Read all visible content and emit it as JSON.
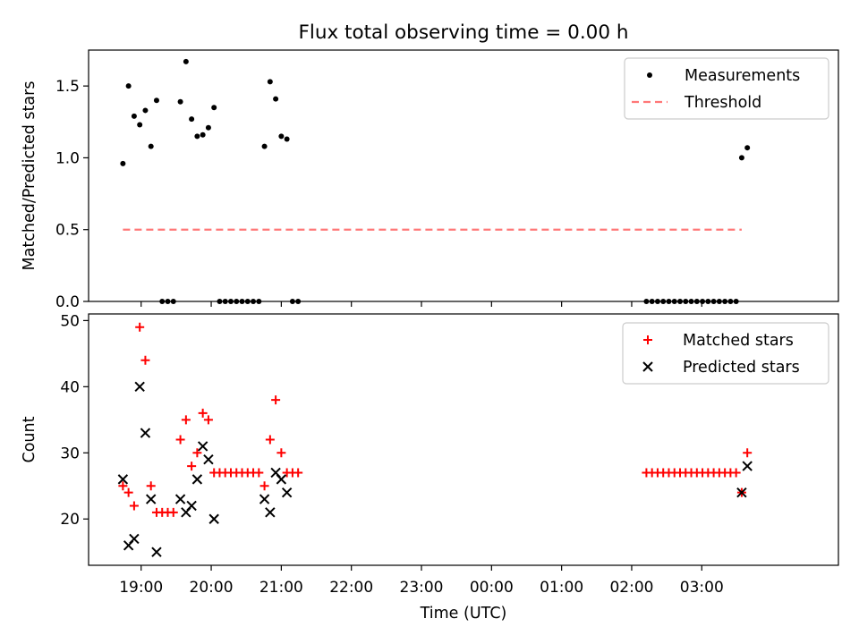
{
  "figure": {
    "title": "Flux total observing time = 0.00 h",
    "xlabel": "Time (UTC)"
  },
  "x_tick_labels": [
    "19:00",
    "20:00",
    "21:00",
    "22:00",
    "23:00",
    "00:00",
    "01:00",
    "02:00",
    "03:00"
  ],
  "chart_data": [
    {
      "type": "scatter",
      "title": "Flux total observing time = 0.00 h",
      "xlabel": "",
      "ylabel": "Matched/Predicted stars",
      "x_unit": "hours since 18:00 UTC",
      "xlim": [
        0.25,
        10.95
      ],
      "ylim": [
        0,
        1.75
      ],
      "yticks": [
        0.0,
        0.5,
        1.0,
        1.5
      ],
      "ytick_labels": [
        "0.0",
        "0.5",
        "1.0",
        "1.5"
      ],
      "legend": {
        "position": "top-right",
        "entries": [
          "Measurements",
          "Threshold"
        ]
      },
      "series": [
        {
          "name": "Measurements",
          "marker": "dot",
          "color": "#000000",
          "x": [
            0.74,
            0.82,
            0.9,
            0.98,
            1.06,
            1.14,
            1.22,
            1.3,
            1.38,
            1.46,
            1.56,
            1.64,
            1.72,
            1.8,
            1.88,
            1.96,
            2.04,
            2.12,
            2.2,
            2.28,
            2.36,
            2.44,
            2.52,
            2.6,
            2.68,
            2.76,
            2.84,
            2.92,
            3.0,
            3.08,
            3.16,
            3.24,
            8.21,
            8.29,
            8.37,
            8.45,
            8.53,
            8.61,
            8.69,
            8.77,
            8.85,
            8.93,
            9.01,
            9.09,
            9.17,
            9.25,
            9.33,
            9.41,
            9.49,
            9.57,
            9.65
          ],
          "y": [
            0.96,
            1.5,
            1.29,
            1.23,
            1.33,
            1.08,
            1.4,
            0.0,
            0.0,
            0.0,
            1.39,
            1.67,
            1.27,
            1.15,
            1.16,
            1.21,
            1.35,
            0.0,
            0.0,
            0.0,
            0.0,
            0.0,
            0.0,
            0.0,
            0.0,
            1.08,
            1.53,
            1.41,
            1.15,
            1.13,
            0.0,
            0.0,
            0.0,
            0.0,
            0.0,
            0.0,
            0.0,
            0.0,
            0.0,
            0.0,
            0.0,
            0.0,
            0.0,
            0.0,
            0.0,
            0.0,
            0.0,
            0.0,
            0.0,
            1.0,
            1.07
          ]
        },
        {
          "name": "Threshold",
          "marker": "dashed-line",
          "color": "#ff7777",
          "x": [
            0.74,
            9.57
          ],
          "y": [
            0.5,
            0.5
          ]
        }
      ]
    },
    {
      "type": "scatter",
      "title": "",
      "xlabel": "Time (UTC)",
      "ylabel": "Count",
      "x_unit": "hours since 18:00 UTC",
      "xlim": [
        0.25,
        10.95
      ],
      "ylim": [
        13.0,
        51.0
      ],
      "yticks": [
        20,
        30,
        40,
        50
      ],
      "ytick_labels": [
        "20",
        "30",
        "40",
        "50"
      ],
      "legend": {
        "position": "top-right",
        "entries": [
          "Matched stars",
          "Predicted stars"
        ]
      },
      "series": [
        {
          "name": "Matched stars",
          "marker": "plus",
          "color": "#ff0000",
          "x": [
            0.74,
            0.82,
            0.9,
            0.98,
            1.06,
            1.14,
            1.22,
            1.3,
            1.38,
            1.46,
            1.56,
            1.64,
            1.72,
            1.8,
            1.88,
            1.96,
            2.04,
            2.12,
            2.2,
            2.28,
            2.36,
            2.44,
            2.52,
            2.6,
            2.68,
            2.76,
            2.84,
            2.92,
            3.0,
            3.08,
            3.16,
            3.24,
            8.21,
            8.29,
            8.37,
            8.45,
            8.53,
            8.61,
            8.69,
            8.77,
            8.85,
            8.93,
            9.01,
            9.09,
            9.17,
            9.25,
            9.33,
            9.41,
            9.49,
            9.57,
            9.65
          ],
          "y": [
            25,
            24,
            22,
            49,
            44,
            25,
            21,
            21,
            21,
            21,
            32,
            35,
            28,
            30,
            36,
            35,
            27,
            27,
            27,
            27,
            27,
            27,
            27,
            27,
            27,
            25,
            32,
            38,
            30,
            27,
            27,
            27,
            27,
            27,
            27,
            27,
            27,
            27,
            27,
            27,
            27,
            27,
            27,
            27,
            27,
            27,
            27,
            27,
            27,
            24,
            30
          ]
        },
        {
          "name": "Predicted stars",
          "marker": "x",
          "color": "#000000",
          "x": [
            0.74,
            0.82,
            0.9,
            0.98,
            1.06,
            1.14,
            1.22,
            1.56,
            1.64,
            1.72,
            1.8,
            1.88,
            1.96,
            2.04,
            2.76,
            2.84,
            2.92,
            3.0,
            3.08,
            9.57,
            9.65
          ],
          "y": [
            26,
            16,
            17,
            40,
            33,
            23,
            15,
            23,
            21,
            22,
            26,
            31,
            29,
            20,
            23,
            21,
            27,
            26,
            24,
            24,
            28
          ]
        }
      ]
    }
  ]
}
